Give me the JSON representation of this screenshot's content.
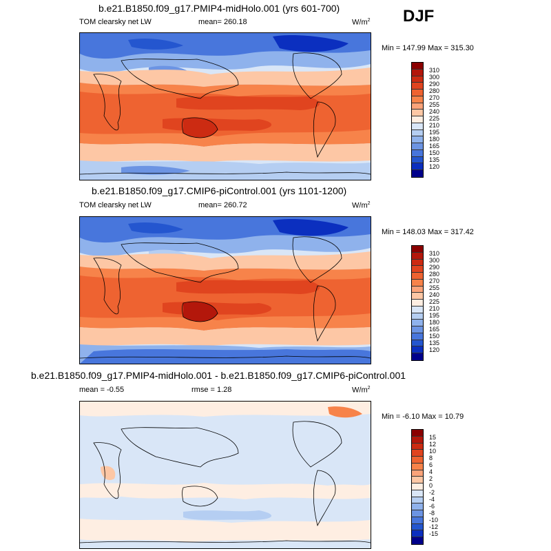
{
  "season": "DJF",
  "units_base": "W/m",
  "units_sup": "2",
  "panels": [
    {
      "title": "b.e21.B1850.f09_g17.PMIP4-midHolo.001 (yrs 601-700)",
      "variable": "TOM clearsky net LW",
      "mean": "mean= 260.18",
      "minmax": "Min = 147.99 Max = 315.30",
      "colors": [
        "#8b0000",
        "#b3170b",
        "#cc2b12",
        "#e0441f",
        "#ee6331",
        "#f7834a",
        "#fba37a",
        "#fdc7a5",
        "#feeee2",
        "#d9e6f7",
        "#b5cef2",
        "#8fb2ec",
        "#6c94e3",
        "#4876dc",
        "#2456cf",
        "#0b2fbf",
        "#00008b"
      ],
      "labels": [
        "310",
        "300",
        "290",
        "280",
        "270",
        "255",
        "240",
        "225",
        "210",
        "195",
        "180",
        "165",
        "150",
        "135",
        "120"
      ]
    },
    {
      "title": "b.e21.B1850.f09_g17.CMIP6-piControl.001 (yrs 1101-1200)",
      "variable": "TOM clearsky net LW",
      "mean": "mean= 260.72",
      "minmax": "Min = 148.03 Max = 317.42",
      "colors": [
        "#8b0000",
        "#b3170b",
        "#cc2b12",
        "#e0441f",
        "#ee6331",
        "#f7834a",
        "#fba37a",
        "#fdc7a5",
        "#feeee2",
        "#d9e6f7",
        "#b5cef2",
        "#8fb2ec",
        "#6c94e3",
        "#4876dc",
        "#2456cf",
        "#0b2fbf",
        "#00008b"
      ],
      "labels": [
        "310",
        "300",
        "290",
        "280",
        "270",
        "255",
        "240",
        "225",
        "210",
        "195",
        "180",
        "165",
        "150",
        "135",
        "120"
      ]
    },
    {
      "title": "b.e21.B1850.f09_g17.PMIP4-midHolo.001 - b.e21.B1850.f09_g17.CMIP6-piControl.001",
      "mean": "mean =  -0.55",
      "rmse": "rmse =   1.28",
      "minmax": "Min =  -6.10 Max =  10.79",
      "colors": [
        "#8b0000",
        "#b3170b",
        "#cc2b12",
        "#e0441f",
        "#ee6331",
        "#f7834a",
        "#fba37a",
        "#fdc7a5",
        "#feeee2",
        "#d9e6f7",
        "#b5cef2",
        "#8fb2ec",
        "#6c94e3",
        "#4876dc",
        "#2456cf",
        "#0b2fbf",
        "#00008b"
      ],
      "labels": [
        "15",
        "12",
        "10",
        "8",
        "6",
        "4",
        "2",
        "0",
        "-2",
        "-4",
        "-6",
        "-8",
        "-10",
        "-12",
        "-15"
      ]
    }
  ]
}
